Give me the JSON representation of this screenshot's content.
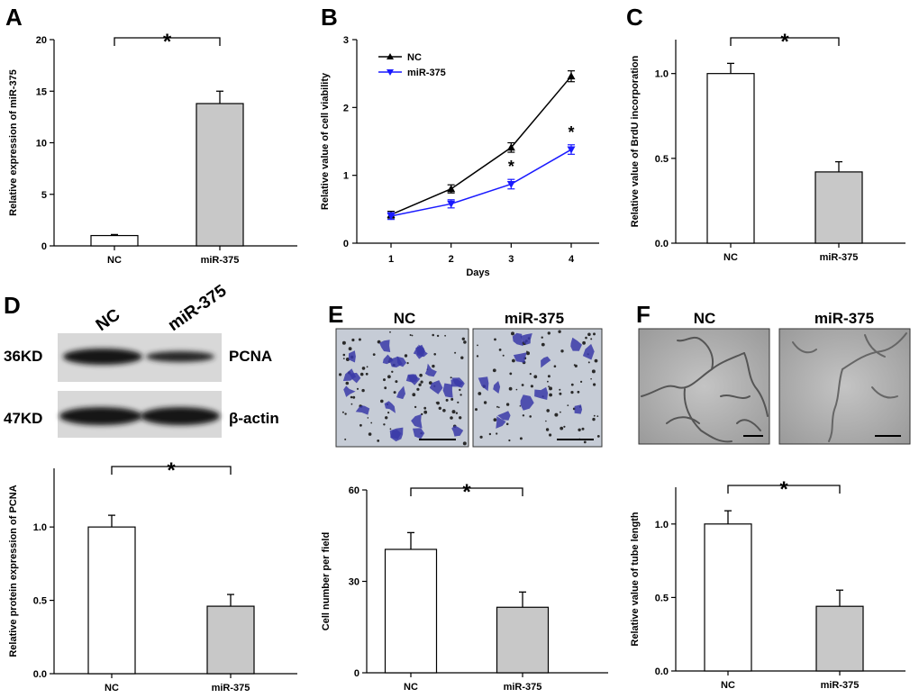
{
  "panels": {
    "A": "A",
    "B": "B",
    "C": "C",
    "D": "D",
    "E": "E",
    "F": "F"
  },
  "star": "*",
  "bar_color_nc": "#ffffff",
  "bar_color_mir": "#c8c8c8",
  "line_color_nc": "#000000",
  "line_color_mir": "#1a1aff",
  "stain_color": "#3a3aa8",
  "western": {
    "lanes": [
      "NC",
      "miR-375"
    ],
    "rows": [
      {
        "size": "36KD",
        "protein": "PCNA"
      },
      {
        "size": "47KD",
        "protein": "β-actin"
      }
    ]
  },
  "image_panels": {
    "E": {
      "labels": [
        "NC",
        "miR-375"
      ]
    },
    "F": {
      "labels": [
        "NC",
        "miR-375"
      ]
    }
  },
  "chart_data": [
    {
      "id": "A",
      "type": "bar",
      "categories": [
        "NC",
        "miR-375"
      ],
      "values": [
        1.0,
        13.8
      ],
      "errors": [
        0.1,
        1.2
      ],
      "xlabel": "",
      "ylabel": "Relative expression of miR-375",
      "ylim": [
        0,
        20
      ],
      "yticks": [
        "0",
        "5",
        "10",
        "15",
        "20"
      ],
      "ytick_values": [
        0,
        5,
        10,
        15,
        20
      ],
      "significance": "*"
    },
    {
      "id": "B",
      "type": "line",
      "x": [
        1,
        2,
        3,
        4
      ],
      "xticks": [
        "1",
        "2",
        "3",
        "4"
      ],
      "series": [
        {
          "name": "NC",
          "values": [
            0.42,
            0.8,
            1.41,
            2.46
          ],
          "errors": [
            0.05,
            0.06,
            0.07,
            0.08
          ]
        },
        {
          "name": "miR-375",
          "values": [
            0.4,
            0.58,
            0.87,
            1.38
          ],
          "errors": [
            0.05,
            0.06,
            0.07,
            0.07
          ]
        }
      ],
      "xlabel": "Days",
      "ylabel": "Relative value of cell viability",
      "ylim": [
        0,
        3
      ],
      "yticks": [
        "0",
        "1",
        "2",
        "3"
      ],
      "ytick_values": [
        0,
        1,
        2,
        3
      ],
      "legend": "top-left",
      "annotations": [
        {
          "x": 3,
          "text": "*"
        },
        {
          "x": 4,
          "text": "*"
        }
      ]
    },
    {
      "id": "C",
      "type": "bar",
      "categories": [
        "NC",
        "miR-375"
      ],
      "values": [
        1.0,
        0.42
      ],
      "errors": [
        0.06,
        0.06
      ],
      "xlabel": "",
      "ylabel": "Relative value of BrdU incorporation",
      "ylim": [
        0,
        1.2
      ],
      "yticks": [
        "0.0",
        "0.5",
        "1.0"
      ],
      "ytick_values": [
        0,
        0.5,
        1.0
      ],
      "significance": "*"
    },
    {
      "id": "D",
      "type": "bar",
      "categories": [
        "NC",
        "miR-375"
      ],
      "values": [
        1.0,
        0.46
      ],
      "errors": [
        0.08,
        0.08
      ],
      "xlabel": "",
      "ylabel": "Relative  protein expression of PCNA",
      "ylim": [
        0,
        1.4
      ],
      "yticks": [
        "0.0",
        "0.5",
        "1.0"
      ],
      "ytick_values": [
        0,
        0.5,
        1.0
      ],
      "significance": "*"
    },
    {
      "id": "E",
      "type": "bar",
      "categories": [
        "NC",
        "miR-375"
      ],
      "values": [
        40.5,
        21.5
      ],
      "errors": [
        5.5,
        5.0
      ],
      "xlabel": "",
      "ylabel": "Cell number per field",
      "ylim": [
        0,
        60
      ],
      "yticks": [
        "0",
        "30",
        "60"
      ],
      "ytick_values": [
        0,
        30,
        60
      ],
      "significance": "*"
    },
    {
      "id": "F",
      "type": "bar",
      "categories": [
        "NC",
        "miR-375"
      ],
      "values": [
        1.0,
        0.44
      ],
      "errors": [
        0.09,
        0.11
      ],
      "xlabel": "",
      "ylabel": "Relative value of tube length",
      "ylim": [
        0,
        1.25
      ],
      "yticks": [
        "0.0",
        "0.5",
        "1.0"
      ],
      "ytick_values": [
        0,
        0.5,
        1.0
      ],
      "significance": "*"
    }
  ]
}
